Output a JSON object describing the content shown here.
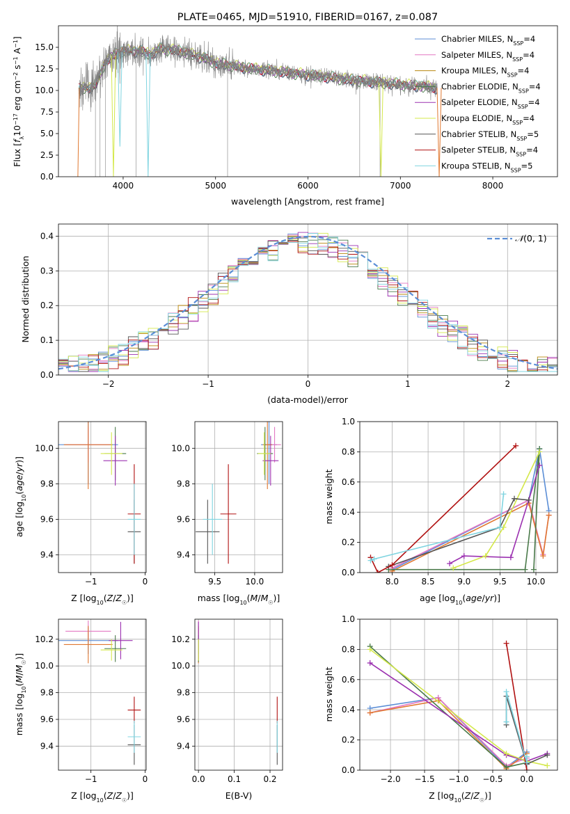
{
  "chart_data": [
    {
      "id": "spectrum",
      "type": "line",
      "title": "PLATE=0465, MJD=51910, FIBERID=0167, z=0.087",
      "xlabel": "wavelength [Angstrom, rest frame]",
      "ylabel": "Flux [fλ10⁻¹⁷ erg cm⁻² s⁻¹ A⁻¹]",
      "xlim": [
        3300,
        8700
      ],
      "ylim": [
        0,
        17.5
      ],
      "xticks": [
        4000,
        5000,
        6000,
        7000,
        8000
      ],
      "yticks": [
        0.0,
        2.5,
        5.0,
        7.5,
        10.0,
        12.5,
        15.0
      ],
      "legend_position": "top-right",
      "legend": [
        {
          "label": "Chabrier MILES, N",
          "sub": "SSP",
          "tail": "=4",
          "color": "#5b8ed6"
        },
        {
          "label": "Salpeter MILES, N",
          "sub": "SSP",
          "tail": "=4",
          "color": "#e377c2"
        },
        {
          "label": "Kroupa MILES, N",
          "sub": "SSP",
          "tail": "=4",
          "color": "#b8860b"
        },
        {
          "label": "Chabrier ELODIE, N",
          "sub": "SSP",
          "tail": "=4",
          "color": "#4a7a4a"
        },
        {
          "label": "Salpeter ELODIE, N",
          "sub": "SSP",
          "tail": "=4",
          "color": "#9b30b0"
        },
        {
          "label": "Kroupa ELODIE, N",
          "sub": "SSP",
          "tail": "=4",
          "color": "#d4e84a"
        },
        {
          "label": "Chabrier STELIB, N",
          "sub": "SSP",
          "tail": "=5",
          "color": "#555555"
        },
        {
          "label": "Salpeter STELIB, N",
          "sub": "SSP",
          "tail": "=4",
          "color": "#b01010"
        },
        {
          "label": "Kroupa STELIB, N",
          "sub": "SSP",
          "tail": "=5",
          "color": "#7fd4e0"
        }
      ],
      "data_series": {
        "name": "data",
        "color": "#808080"
      },
      "continuum": {
        "x": [
          3520,
          3600,
          3700,
          3800,
          3900,
          4000,
          4100,
          4200,
          4300,
          4400,
          4600,
          4800,
          5000,
          5200,
          5500,
          6000,
          6500,
          7000,
          7400
        ],
        "y": [
          10.2,
          10.3,
          10.5,
          13.2,
          14.1,
          14.6,
          14.6,
          14.5,
          14.2,
          14.8,
          14.6,
          14.0,
          13.2,
          12.8,
          12.4,
          11.8,
          11.2,
          10.7,
          10.3
        ]
      },
      "dips": [
        {
          "x": 3895,
          "y": 0.0
        },
        {
          "x": 3965,
          "y": 3.5
        },
        {
          "x": 4270,
          "y": 0.0
        },
        {
          "x": 6790,
          "y": 0.0
        },
        {
          "x": 7420,
          "y": 0.0
        }
      ]
    },
    {
      "id": "residuals",
      "type": "line",
      "xlabel": "(data-model)/error",
      "ylabel": "Normed distribution",
      "xlim": [
        -2.5,
        2.5
      ],
      "ylim": [
        0,
        0.435
      ],
      "xticks": [
        -2,
        -1,
        0,
        1,
        2
      ],
      "yticks": [
        0.0,
        0.1,
        0.2,
        0.3,
        0.4
      ],
      "legend_position": "top-right",
      "legend_label": "N(0, 1)",
      "gaussian": {
        "mean": 0,
        "sigma": 1,
        "color": "#5b8ed6"
      },
      "hist_bins": [
        -2.5,
        2.5,
        0.1
      ]
    },
    {
      "id": "z-vs-age",
      "type": "scatter",
      "xlabel": "Z [log10(Z/Z☉)]",
      "ylabel": "age  [log10(age/yr)]",
      "xlim": [
        -1.6,
        0.02
      ],
      "ylim": [
        9.3,
        10.15
      ],
      "xticks": [
        -1,
        0
      ],
      "yticks": [
        9.4,
        9.6,
        9.8,
        10.0
      ],
      "points": [
        {
          "x": -1.05,
          "y": 10.02,
          "xerr": 0.55,
          "yerr": 0.22,
          "color": "#5b8ed6"
        },
        {
          "x": -1.05,
          "y": 10.02,
          "xerr": 0.42,
          "yerr": 0.1,
          "color": "#e377c2"
        },
        {
          "x": -1.05,
          "y": 10.02,
          "xerr": 0.45,
          "yerr": 0.25,
          "color": "#e07830"
        },
        {
          "x": -0.55,
          "y": 9.97,
          "xerr": 0.2,
          "yerr": 0.15,
          "color": "#4a7a4a"
        },
        {
          "x": -0.55,
          "y": 9.93,
          "xerr": 0.22,
          "yerr": 0.14,
          "color": "#9b30b0"
        },
        {
          "x": -0.62,
          "y": 9.97,
          "xerr": 0.2,
          "yerr": 0.12,
          "color": "#d4e84a"
        },
        {
          "x": -0.2,
          "y": 9.53,
          "xerr": 0.12,
          "yerr": 0.18,
          "color": "#555555"
        },
        {
          "x": -0.2,
          "y": 9.63,
          "xerr": 0.12,
          "yerr": 0.28,
          "color": "#b01010"
        },
        {
          "x": -0.2,
          "y": 9.6,
          "xerr": 0.12,
          "yerr": 0.2,
          "color": "#7fd4e0"
        }
      ]
    },
    {
      "id": "mass-vs-age",
      "type": "scatter",
      "xlabel": "mass [log10(M/M☉)]",
      "xlim": [
        9.25,
        10.35
      ],
      "ylim": [
        9.3,
        10.15
      ],
      "xticks": [
        9.5,
        10.0
      ],
      "yticks": [
        9.4,
        9.6,
        9.8,
        10.0
      ],
      "points": [
        {
          "x": 10.18,
          "y": 10.02,
          "xerr": 0.1,
          "yerr": 0.22,
          "color": "#5b8ed6"
        },
        {
          "x": 10.25,
          "y": 10.02,
          "xerr": 0.08,
          "yerr": 0.1,
          "color": "#e377c2"
        },
        {
          "x": 10.16,
          "y": 10.02,
          "xerr": 0.06,
          "yerr": 0.25,
          "color": "#e07830"
        },
        {
          "x": 10.13,
          "y": 9.97,
          "xerr": 0.1,
          "yerr": 0.15,
          "color": "#4a7a4a"
        },
        {
          "x": 10.2,
          "y": 9.93,
          "xerr": 0.1,
          "yerr": 0.14,
          "color": "#9b30b0"
        },
        {
          "x": 10.12,
          "y": 9.97,
          "xerr": 0.08,
          "yerr": 0.12,
          "color": "#d4e84a"
        },
        {
          "x": 9.41,
          "y": 9.53,
          "xerr": 0.15,
          "yerr": 0.18,
          "color": "#555555"
        },
        {
          "x": 9.67,
          "y": 9.63,
          "xerr": 0.1,
          "yerr": 0.28,
          "color": "#b01010"
        },
        {
          "x": 9.47,
          "y": 9.6,
          "xerr": 0.12,
          "yerr": 0.2,
          "color": "#7fd4e0"
        }
      ]
    },
    {
      "id": "age-vs-weight",
      "type": "line",
      "xlabel": "age  [log10(age/yr)]",
      "ylabel": "mass weight",
      "xlim": [
        7.55,
        10.3
      ],
      "ylim": [
        0,
        1.0
      ],
      "xticks": [
        8.0,
        8.5,
        9.0,
        9.5,
        10.0
      ],
      "yticks": [
        0.0,
        0.2,
        0.4,
        0.6,
        0.8,
        1.0
      ],
      "series": [
        {
          "color": "#5b8ed6",
          "x": [
            8.0,
            9.9,
            10.05,
            10.18
          ],
          "y": [
            0.02,
            0.48,
            0.82,
            0.41
          ]
        },
        {
          "color": "#e377c2",
          "x": [
            8.0,
            9.9,
            10.1,
            10.18
          ],
          "y": [
            0.03,
            0.48,
            0.12,
            0.38
          ]
        },
        {
          "color": "#e07830",
          "x": [
            8.0,
            9.9,
            10.1,
            10.18
          ],
          "y": [
            0.01,
            0.46,
            0.11,
            0.38
          ]
        },
        {
          "color": "#4a7a4a",
          "x": [
            7.95,
            9.85,
            10.05,
            9.97
          ],
          "y": [
            0.02,
            0.02,
            0.82,
            0.02
          ]
        },
        {
          "color": "#9b30b0",
          "x": [
            8.8,
            9.0,
            9.65,
            10.05
          ],
          "y": [
            0.06,
            0.11,
            0.1,
            0.71
          ]
        },
        {
          "color": "#d4e84a",
          "x": [
            8.85,
            9.3,
            9.55,
            10.05
          ],
          "y": [
            0.03,
            0.11,
            0.3,
            0.8
          ]
        },
        {
          "color": "#555555",
          "x": [
            7.95,
            9.5,
            9.7,
            9.9
          ],
          "y": [
            0.04,
            0.3,
            0.49,
            0.48
          ]
        },
        {
          "color": "#b01010",
          "x": [
            7.7,
            7.8,
            8.0,
            9.72
          ],
          "y": [
            0.1,
            0.0,
            0.05,
            0.84
          ]
        },
        {
          "color": "#7fd4e0",
          "x": [
            7.7,
            7.75,
            9.5,
            9.55
          ],
          "y": [
            0.08,
            0.09,
            0.3,
            0.52
          ]
        }
      ]
    },
    {
      "id": "z-vs-mass",
      "type": "scatter",
      "xlabel": "Z [log10(Z/Z☉)]",
      "ylabel": "mass [log10(M/M☉)]",
      "xlim": [
        -1.6,
        0.02
      ],
      "ylim": [
        9.22,
        10.35
      ],
      "xticks": [
        -1,
        0
      ],
      "yticks": [
        9.4,
        9.6,
        9.8,
        10.0,
        10.2
      ],
      "points": [
        {
          "x": -1.05,
          "y": 10.19,
          "xerr": 0.55,
          "yerr": 0.1,
          "color": "#5b8ed6"
        },
        {
          "x": -1.05,
          "y": 10.26,
          "xerr": 0.42,
          "yerr": 0.08,
          "color": "#e377c2"
        },
        {
          "x": -1.05,
          "y": 10.16,
          "xerr": 0.45,
          "yerr": 0.14,
          "color": "#e07830"
        },
        {
          "x": -0.55,
          "y": 10.13,
          "xerr": 0.2,
          "yerr": 0.1,
          "color": "#4a7a4a"
        },
        {
          "x": -0.45,
          "y": 10.19,
          "xerr": 0.22,
          "yerr": 0.14,
          "color": "#9b30b0"
        },
        {
          "x": -0.62,
          "y": 10.12,
          "xerr": 0.2,
          "yerr": 0.08,
          "color": "#d4e84a"
        },
        {
          "x": -0.2,
          "y": 9.41,
          "xerr": 0.12,
          "yerr": 0.15,
          "color": "#555555"
        },
        {
          "x": -0.2,
          "y": 9.67,
          "xerr": 0.12,
          "yerr": 0.1,
          "color": "#b01010"
        },
        {
          "x": -0.2,
          "y": 9.47,
          "xerr": 0.12,
          "yerr": 0.12,
          "color": "#7fd4e0"
        }
      ]
    },
    {
      "id": "ebv-vs-mass",
      "type": "scatter",
      "xlabel": "E(B-V)",
      "xlim": [
        -0.01,
        0.235
      ],
      "ylim": [
        9.22,
        10.35
      ],
      "xticks": [
        0.0,
        0.1,
        0.2
      ],
      "yticks": [
        9.4,
        9.6,
        9.8,
        10.0,
        10.2
      ],
      "points": [
        {
          "x": 0.0,
          "y": 10.19,
          "xerr": 0,
          "yerr": 0.1,
          "color": "#5b8ed6"
        },
        {
          "x": 0.0,
          "y": 10.26,
          "xerr": 0,
          "yerr": 0.08,
          "color": "#e377c2"
        },
        {
          "x": 0.0,
          "y": 10.16,
          "xerr": 0,
          "yerr": 0.14,
          "color": "#e07830"
        },
        {
          "x": 0.0,
          "y": 10.13,
          "xerr": 0,
          "yerr": 0.1,
          "color": "#4a7a4a"
        },
        {
          "x": 0.0,
          "y": 10.19,
          "xerr": 0,
          "yerr": 0.14,
          "color": "#9b30b0"
        },
        {
          "x": 0.0,
          "y": 10.12,
          "xerr": 0,
          "yerr": 0.08,
          "color": "#d4e84a"
        },
        {
          "x": 0.22,
          "y": 9.41,
          "xerr": 0,
          "yerr": 0.15,
          "color": "#555555"
        },
        {
          "x": 0.22,
          "y": 9.67,
          "xerr": 0,
          "yerr": 0.1,
          "color": "#b01010"
        },
        {
          "x": 0.22,
          "y": 9.47,
          "xerr": 0,
          "yerr": 0.12,
          "color": "#7fd4e0"
        }
      ]
    },
    {
      "id": "z-vs-weight",
      "type": "line",
      "xlabel": "Z [log10(Z/Z☉)]",
      "ylabel": "mass weight",
      "xlim": [
        -2.45,
        0.45
      ],
      "ylim": [
        0,
        1.0
      ],
      "xticks": [
        -2.0,
        -1.5,
        -1.0,
        -0.5,
        0.0
      ],
      "yticks": [
        0.0,
        0.2,
        0.4,
        0.6,
        0.8,
        1.0
      ],
      "series": [
        {
          "color": "#5b8ed6",
          "x": [
            -2.3,
            -1.3,
            -0.3,
            0.0
          ],
          "y": [
            0.41,
            0.48,
            0.02,
            0.12
          ]
        },
        {
          "color": "#e377c2",
          "x": [
            -2.3,
            -1.3,
            -0.3,
            0.0
          ],
          "y": [
            0.38,
            0.48,
            0.03,
            0.08
          ]
        },
        {
          "color": "#e07830",
          "x": [
            -2.3,
            -1.3,
            -0.3,
            0.0
          ],
          "y": [
            0.38,
            0.46,
            0.01,
            0.11
          ]
        },
        {
          "color": "#4a7a4a",
          "x": [
            -2.3,
            -0.3,
            0.0
          ],
          "y": [
            0.82,
            0.02,
            0.05
          ]
        },
        {
          "color": "#9b30b0",
          "x": [
            -2.3,
            -0.3,
            0.0,
            0.3
          ],
          "y": [
            0.71,
            0.1,
            0.06,
            0.11
          ]
        },
        {
          "color": "#d4e84a",
          "x": [
            -2.3,
            -0.3,
            0.0,
            0.3
          ],
          "y": [
            0.8,
            0.11,
            0.06,
            0.03
          ]
        },
        {
          "color": "#555555",
          "x": [
            -0.3,
            -0.3,
            0.0,
            0.3
          ],
          "y": [
            0.3,
            0.49,
            0.04,
            0.1
          ]
        },
        {
          "color": "#b01010",
          "x": [
            -0.3,
            0.0
          ],
          "y": [
            0.84,
            0.0
          ]
        },
        {
          "color": "#7fd4e0",
          "x": [
            -0.3,
            -0.3,
            0.0,
            0.0
          ],
          "y": [
            0.32,
            0.52,
            0.05,
            0.09
          ]
        }
      ]
    }
  ]
}
